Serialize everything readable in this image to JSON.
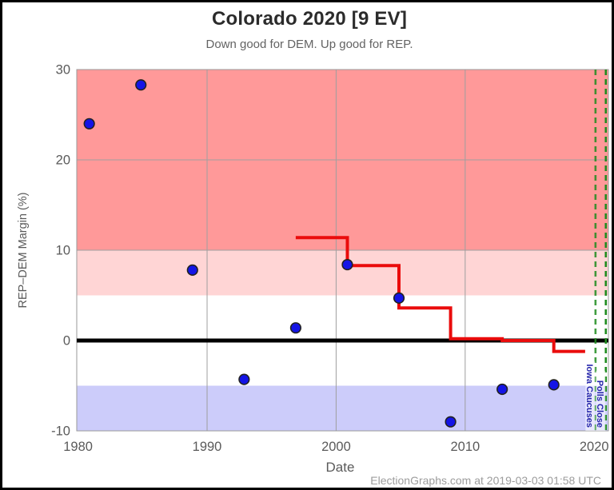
{
  "chart_data": {
    "type": "scatter",
    "title": "Colorado 2020 [9 EV]",
    "subtitle": "Down good for DEM. Up good for REP.",
    "xlabel": "Date",
    "ylabel": "REP–DEM Margin (%)",
    "footer": "ElectionGraphs.com at 2019-03-03 01:58 UTC",
    "xlim": [
      1979.9,
      2021.1
    ],
    "ylim": [
      -10,
      30
    ],
    "x_ticks": [
      1980,
      1990,
      2000,
      2010,
      2020
    ],
    "y_ticks": [
      -10,
      0,
      10,
      20,
      30
    ],
    "gridlines": {
      "x": [
        1990,
        2000,
        2010
      ],
      "y": [
        10,
        20
      ]
    },
    "bands": [
      {
        "name": "strong-rep",
        "from": 10,
        "to": 30,
        "color": "#ff9999"
      },
      {
        "name": "lean-rep",
        "from": 5,
        "to": 10,
        "color": "#ffd5d5"
      },
      {
        "name": "tossup",
        "from": -5,
        "to": 5,
        "color": "#ffffff"
      },
      {
        "name": "lean-dem",
        "from": -10,
        "to": -5,
        "color": "#ccccfa"
      }
    ],
    "zero_line": {
      "value": 0,
      "color": "#000000"
    },
    "points": {
      "name": "Presidential election results (REP-DEM margin %)",
      "color": "#1414e6",
      "edge_color": "#222222",
      "data": [
        {
          "x": 1980.87,
          "y": 24.0
        },
        {
          "x": 1984.87,
          "y": 28.3
        },
        {
          "x": 1988.87,
          "y": 7.8
        },
        {
          "x": 1992.87,
          "y": -4.3
        },
        {
          "x": 1996.87,
          "y": 1.4
        },
        {
          "x": 2000.87,
          "y": 8.4
        },
        {
          "x": 2004.87,
          "y": 4.7
        },
        {
          "x": 2008.87,
          "y": -9.0
        },
        {
          "x": 2012.87,
          "y": -5.4
        },
        {
          "x": 2016.87,
          "y": -4.9
        }
      ]
    },
    "step_line": {
      "name": "Average of last 5 elections",
      "color": "#ea0c0c",
      "vertices": [
        [
          1996.87,
          11.4
        ],
        [
          2000.87,
          11.4
        ],
        [
          2000.87,
          8.3
        ],
        [
          2004.87,
          8.3
        ],
        [
          2004.87,
          3.6
        ],
        [
          2008.87,
          3.6
        ],
        [
          2008.87,
          0.2
        ],
        [
          2012.87,
          0.2
        ],
        [
          2012.87,
          0.0
        ],
        [
          2016.87,
          0.0
        ],
        [
          2016.87,
          -1.2
        ],
        [
          2019.3,
          -1.2
        ]
      ]
    },
    "event_lines": [
      {
        "label": "Iowa Caucuses",
        "x": 2020.1,
        "color": "#1f8c1f",
        "opacity": 0.85
      },
      {
        "label": "Polls Close",
        "x": 2020.9,
        "color": "#1f8c1f",
        "opacity": 1
      }
    ],
    "event_label_color": "#2424aa"
  }
}
